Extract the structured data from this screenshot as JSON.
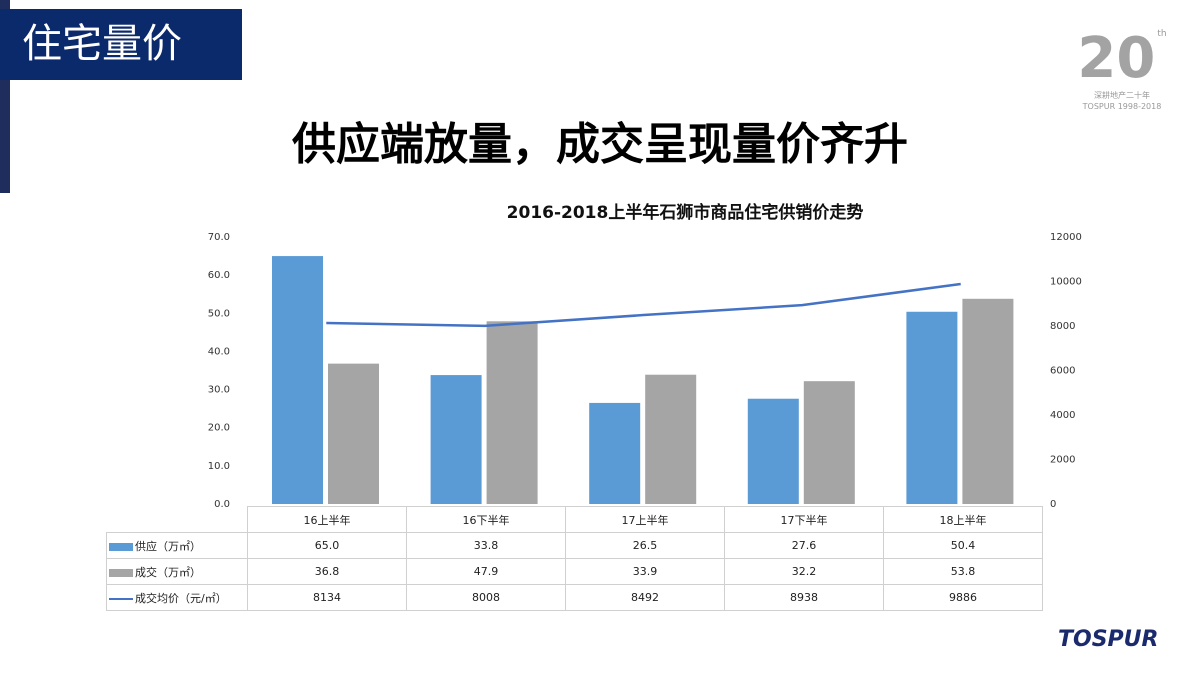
{
  "header": {
    "section": "住宅量价",
    "headline": "供应端放量，成交呈现量价齐升"
  },
  "logo": {
    "number": "20",
    "sup": "th",
    "line1": "深耕地产二十年",
    "line2": "TOSPUR 1998-2018",
    "brand": "TOSPUR"
  },
  "colors": {
    "supply": "#5B9BD5",
    "deal": "#A5A5A5",
    "price": "#4472C4"
  },
  "chart_data": {
    "type": "bar",
    "title": "2016-2018上半年石狮市商品住宅供销价走势",
    "categories": [
      "16上半年",
      "16下半年",
      "17上半年",
      "17下半年",
      "18上半年"
    ],
    "series": [
      {
        "name": "供应（万㎡）",
        "type": "bar",
        "axis": "left",
        "values": [
          65.0,
          33.8,
          26.5,
          27.6,
          50.4
        ],
        "labels": [
          "65.0",
          "33.8",
          "26.5",
          "27.6",
          "50.4"
        ]
      },
      {
        "name": "成交（万㎡）",
        "type": "bar",
        "axis": "left",
        "values": [
          36.8,
          47.9,
          33.9,
          32.2,
          53.8
        ],
        "labels": [
          "36.8",
          "47.9",
          "33.9",
          "32.2",
          "53.8"
        ]
      },
      {
        "name": "成交均价（元/㎡）",
        "type": "line",
        "axis": "right",
        "values": [
          8134,
          8008,
          8492,
          8938,
          9886
        ],
        "labels": [
          "8134",
          "8008",
          "8492",
          "8938",
          "9886"
        ]
      }
    ],
    "ylim_left": [
      0,
      70
    ],
    "yticks_left": [
      "0.0",
      "10.0",
      "20.0",
      "30.0",
      "40.0",
      "50.0",
      "60.0",
      "70.0"
    ],
    "ylim_right": [
      0,
      12000
    ],
    "yticks_right": [
      "0",
      "2000",
      "4000",
      "6000",
      "8000",
      "10000",
      "12000"
    ],
    "grid": false,
    "legend": "data-table"
  }
}
